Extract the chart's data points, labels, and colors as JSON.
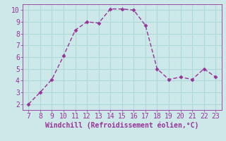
{
  "x": [
    7,
    8,
    9,
    10,
    11,
    12,
    13,
    14,
    15,
    16,
    17,
    18,
    19,
    20,
    21,
    22,
    23
  ],
  "y": [
    2,
    3,
    4.1,
    6.1,
    8.3,
    9.0,
    8.9,
    10.1,
    10.1,
    10.0,
    8.7,
    5.0,
    4.1,
    4.3,
    4.1,
    5.0,
    4.3
  ],
  "line_color": "#993399",
  "marker": "D",
  "marker_size": 2.5,
  "line_width": 1.0,
  "background_color": "#cce8e8",
  "grid_color": "#b0d8d8",
  "xlabel": "Windchill (Refroidissement éolien,°C)",
  "xlabel_color": "#993399",
  "xlabel_fontsize": 7.0,
  "tick_color": "#993399",
  "tick_fontsize": 7.0,
  "ylim": [
    1.5,
    10.5
  ],
  "xlim": [
    6.5,
    23.5
  ],
  "yticks": [
    2,
    3,
    4,
    5,
    6,
    7,
    8,
    9,
    10
  ],
  "xticks": [
    7,
    8,
    9,
    10,
    11,
    12,
    13,
    14,
    15,
    16,
    17,
    18,
    19,
    20,
    21,
    22,
    23
  ]
}
